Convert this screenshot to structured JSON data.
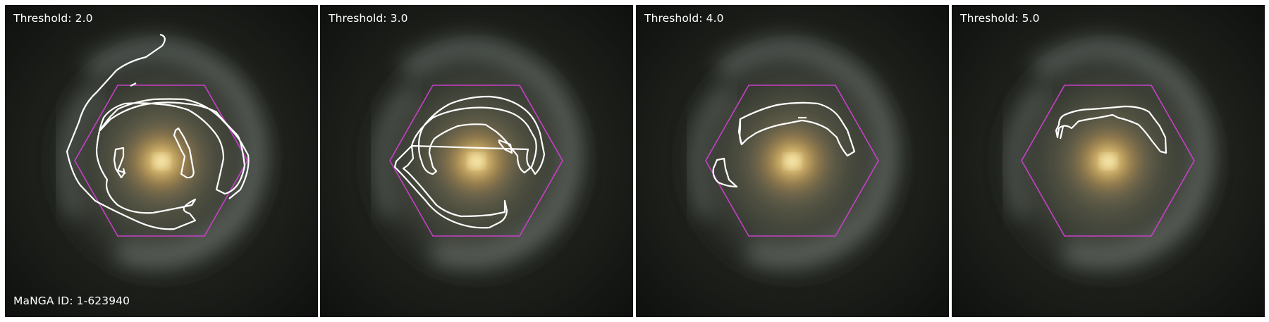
{
  "figure": {
    "manga_id_label": "MaNGA ID: 1-623940",
    "colors": {
      "hexagon": "#c640c8",
      "contour": "#ffffff",
      "core": "#f6dc8a",
      "bulge": "#b58e4a",
      "arms": "#8f9a96",
      "background": "#0d0f0d"
    },
    "panels": [
      {
        "label": "Threshold: 2.0"
      },
      {
        "label": "Threshold: 3.0"
      },
      {
        "label": "Threshold: 4.0"
      },
      {
        "label": "Threshold: 5.0"
      }
    ]
  }
}
